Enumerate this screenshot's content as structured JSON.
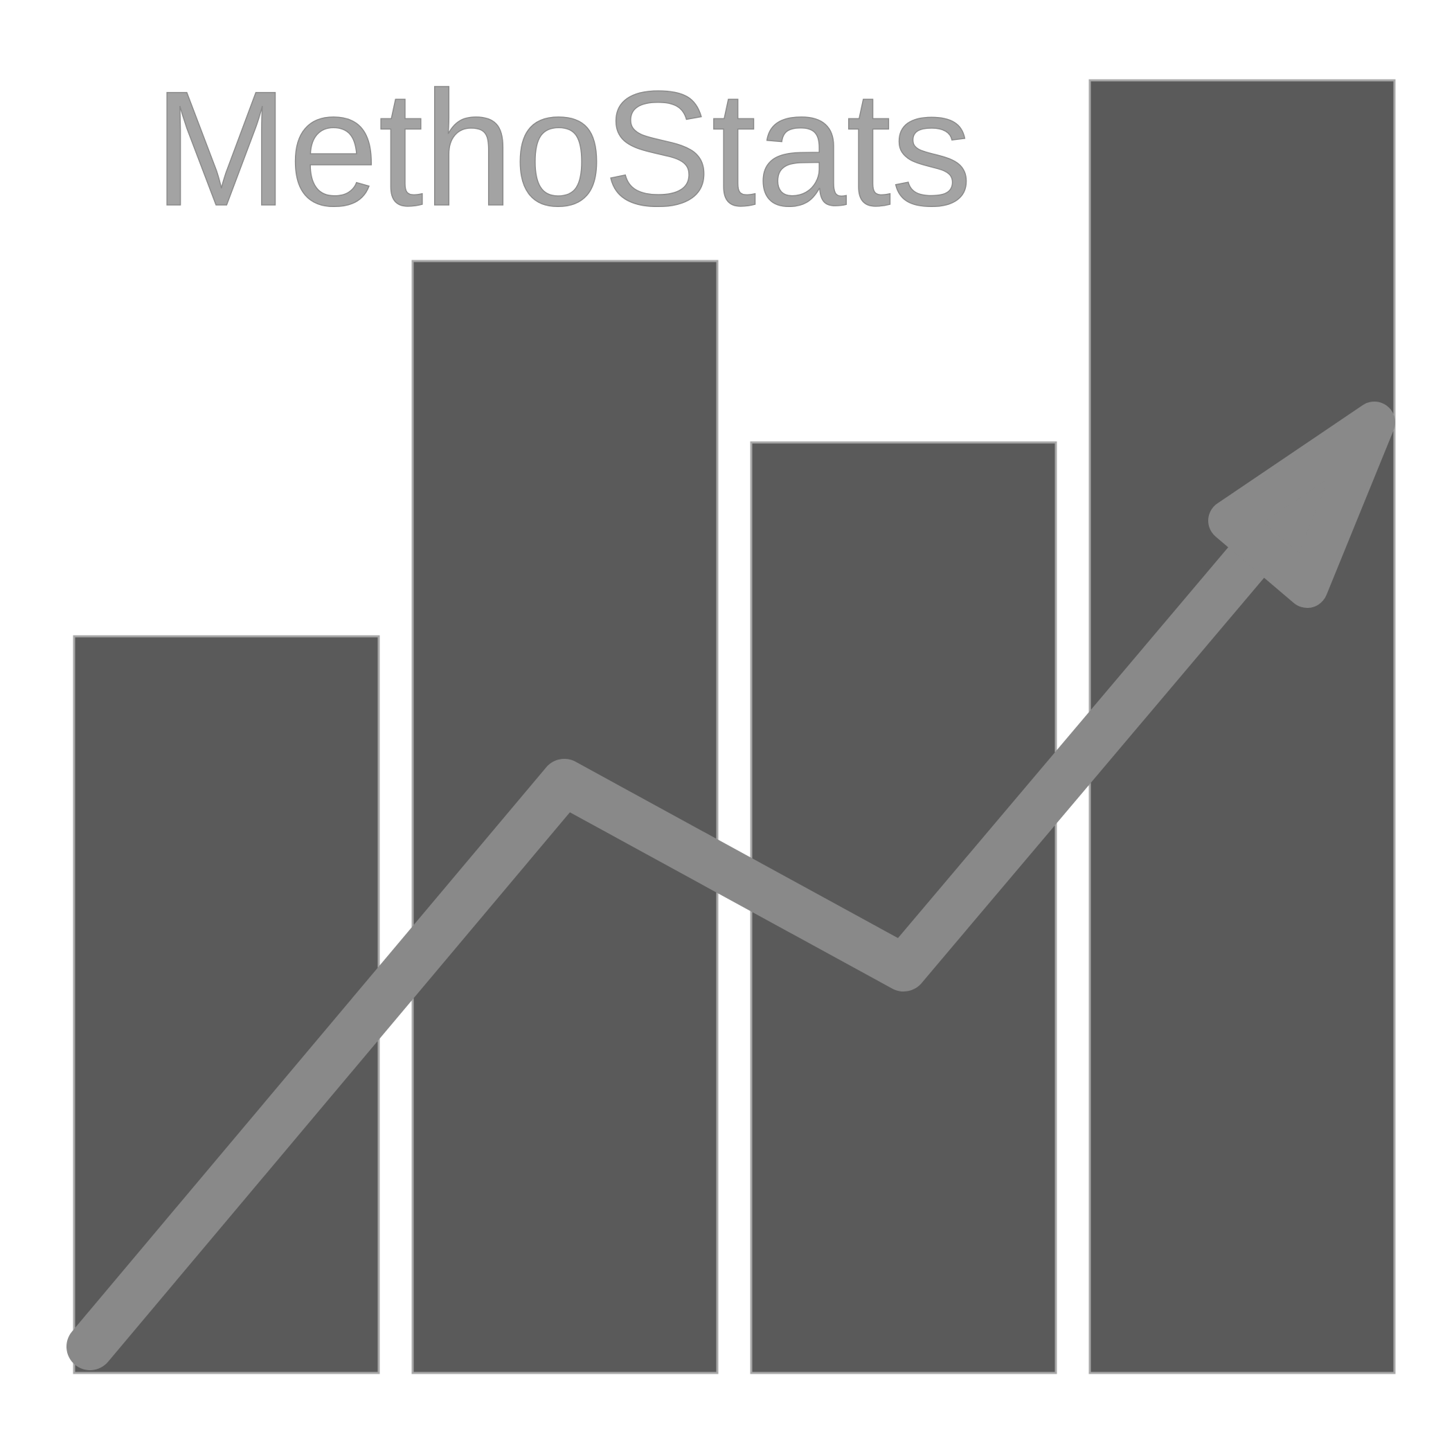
{
  "logo": {
    "wordmark": "MethoStats",
    "icon": "bar-chart-with-rising-arrow-icon",
    "bar_levels": [
      0.57,
      0.86,
      0.72,
      1.0
    ],
    "colors": {
      "background": "#ffffff",
      "bar_fill": "#5a5a5a",
      "bar_stroke": "#a8a8a8",
      "arrow": "#898989",
      "wordmark": "#a3a3a3"
    }
  }
}
